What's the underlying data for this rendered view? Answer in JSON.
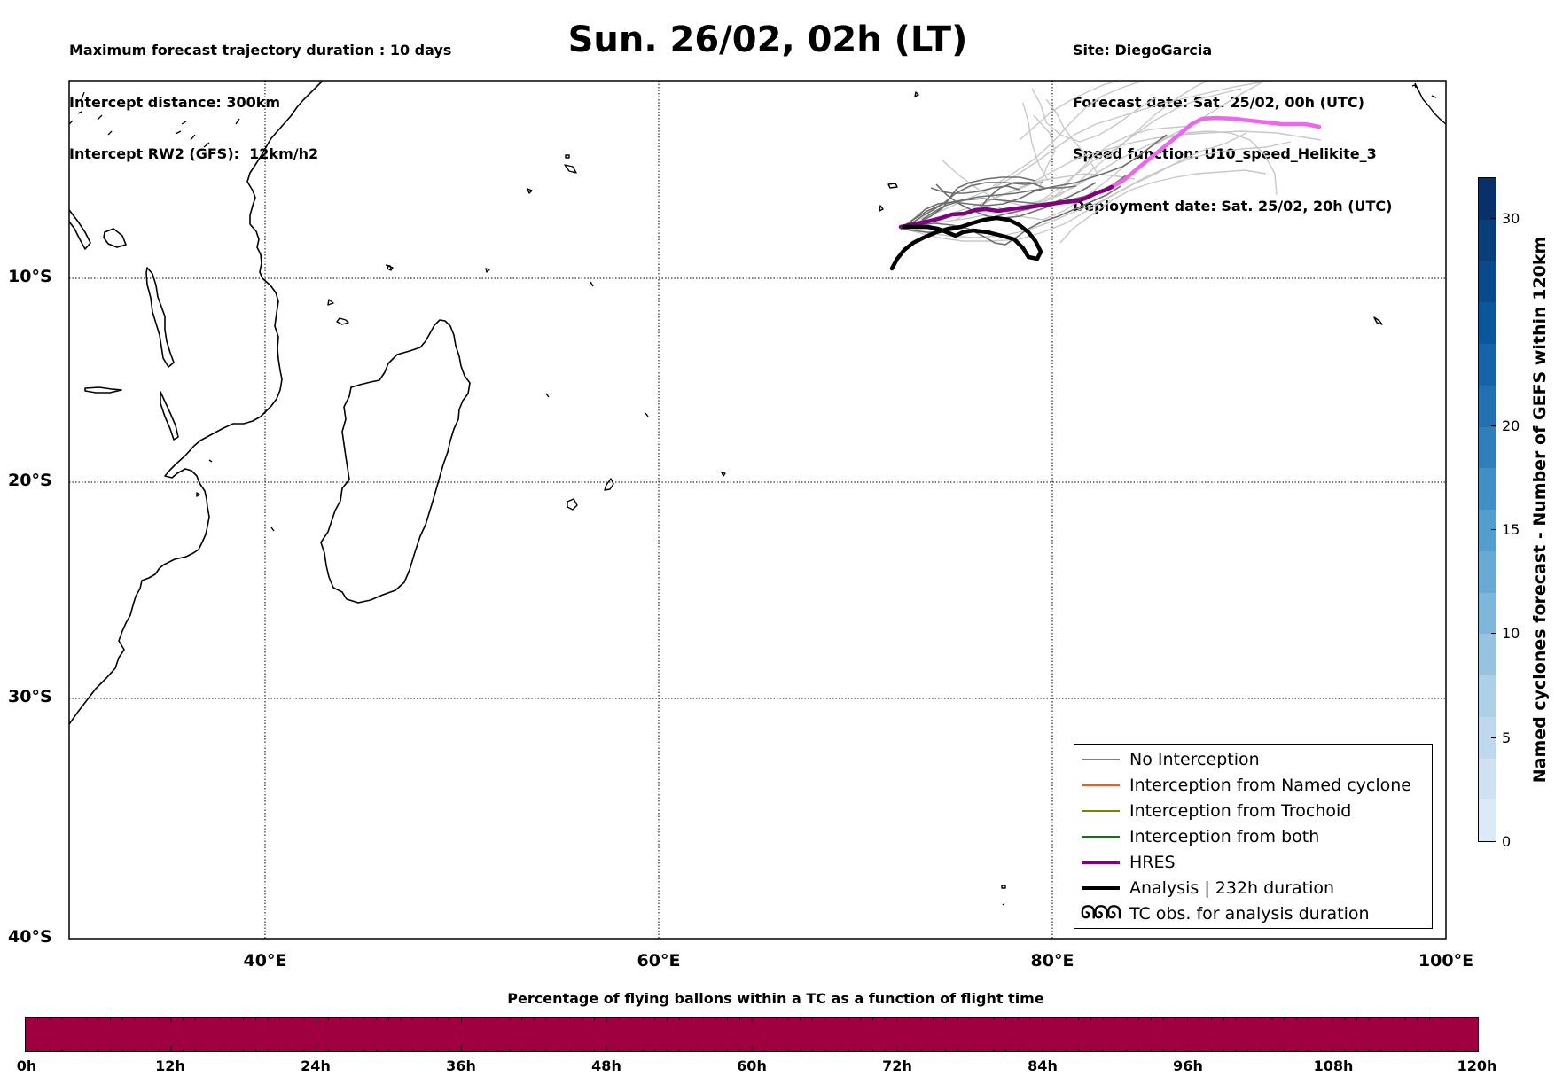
{
  "header": {
    "left_lines": [
      "Maximum forecast trajectory duration : 10 days",
      "Intercept distance: 300km",
      "Intercept RW2 (GFS):  12km/h2"
    ],
    "right_lines": [
      "Site: DiegoGarcia",
      "Forecast date: Sat. 25/02, 00h (UTC)",
      "Speed function: U10_speed_Helikite_3",
      "Deployment date: Sat. 25/02, 20h (UTC)"
    ]
  },
  "title": "Sun. 26/02, 02h (LT)",
  "map": {
    "lon_range": [
      30,
      100
    ],
    "lat_range": [
      -40,
      0
    ],
    "x_ticks": [
      "40°E",
      "60°E",
      "80°E",
      "100°E"
    ],
    "y_ticks": [
      "10°S",
      "20°S",
      "30°S",
      "40°S"
    ],
    "grid": true
  },
  "legend": {
    "items": [
      {
        "label": "No Interception",
        "color": "#808080"
      },
      {
        "label": "Interception from Named cyclone",
        "color": "#e8601c"
      },
      {
        "label": "Interception from Trochoid",
        "color": "#808000"
      },
      {
        "label": "Interception from both",
        "color": "#008000"
      },
      {
        "label": "HRES",
        "color": "#800080"
      },
      {
        "label": "Analysis | 232h duration",
        "color": "#000000"
      },
      {
        "label": "TC obs. for analysis duration",
        "glyph": "ᘏᘏᘏ"
      }
    ]
  },
  "colors": {
    "hres": "#800080",
    "hres_extension": "#ee66ee",
    "analysis": "#000000",
    "ensemble_dark": "#6e6e6e",
    "ensemble_light": "#c8c8c8",
    "bottom_bar": "#a10040"
  },
  "colorbar_right": {
    "label": "Named cyclones forecast - Number of GEFS within 120km",
    "ticks": [
      "0",
      "5",
      "10",
      "15",
      "20",
      "30"
    ],
    "colors": [
      "#dce9f7",
      "#cfe1f2",
      "#bfd8ed",
      "#acd0e6",
      "#96c4df",
      "#7fb7da",
      "#68aad4",
      "#549ecd",
      "#418fc5",
      "#307fbb",
      "#2270b2",
      "#1663a8",
      "#0c569c",
      "#084a8c",
      "#083f7a",
      "#08306b"
    ]
  },
  "bottom_bar": {
    "title": "Percentage of flying ballons within a TC as a function of flight time",
    "ticks": [
      "0h",
      "12h",
      "24h",
      "36h",
      "48h",
      "60h",
      "72h",
      "84h",
      "96h",
      "108h",
      "120h"
    ]
  }
}
